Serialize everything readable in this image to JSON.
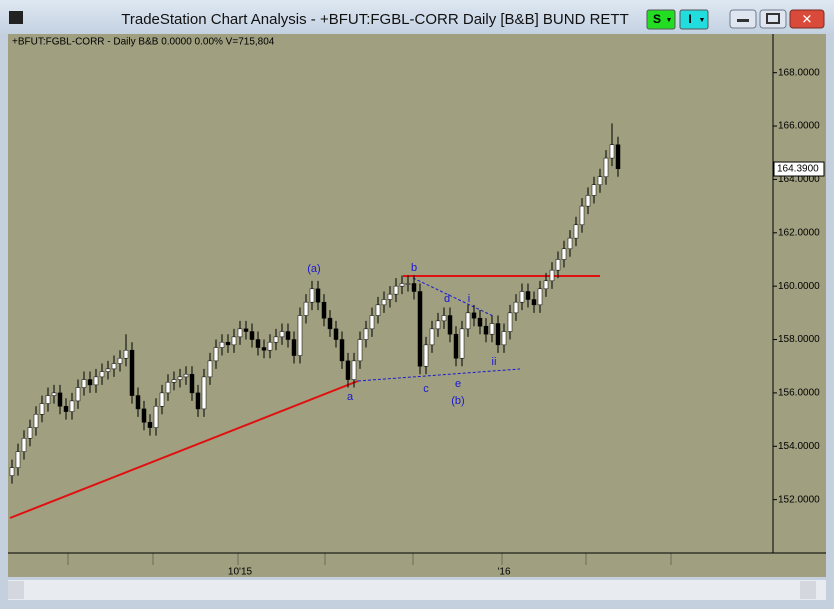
{
  "window": {
    "buttons": [
      "S",
      "I"
    ]
  },
  "chart_data": {
    "type": "candlestick",
    "title": "TradeStation Chart Analysis - +BFUT:FGBL-CORR Daily [B&B] BUND RETT",
    "subtitle": "+BFUT:FGBL-CORR - Daily  B&B  0.0000  0.00%  V=715,804",
    "categories": [
      null,
      null,
      null,
      null,
      null,
      null,
      null,
      null,
      null,
      null,
      null,
      null,
      null,
      null,
      null,
      null,
      null,
      null,
      null,
      null,
      null,
      null,
      null,
      null,
      null,
      null,
      null,
      null,
      null,
      null,
      null,
      null,
      null,
      null,
      null,
      null,
      null,
      null,
      "10'15",
      null,
      null,
      null,
      null,
      null,
      null,
      null,
      null,
      null,
      null,
      null,
      null,
      null,
      null,
      null,
      null,
      null,
      null,
      null,
      null,
      null,
      null,
      null,
      null,
      null,
      null,
      null,
      null,
      null,
      null,
      null,
      null,
      null,
      null,
      null,
      null,
      null,
      null,
      null,
      null,
      null,
      null,
      null,
      "'16",
      null,
      null,
      null,
      null,
      null,
      null,
      null,
      null,
      null,
      null,
      null,
      null,
      null,
      null,
      null,
      null,
      null,
      null,
      null
    ],
    "open": [
      152.9,
      153.2,
      153.8,
      154.3,
      154.7,
      155.2,
      155.6,
      155.9,
      156.0,
      155.5,
      155.3,
      155.7,
      156.2,
      156.5,
      156.3,
      156.6,
      156.8,
      156.9,
      157.1,
      157.3,
      157.6,
      155.9,
      155.4,
      154.9,
      154.7,
      155.5,
      156.0,
      156.4,
      156.5,
      156.6,
      156.7,
      156.0,
      155.4,
      156.6,
      157.2,
      157.7,
      157.9,
      157.8,
      158.1,
      158.4,
      158.3,
      158.0,
      157.7,
      157.6,
      157.9,
      158.1,
      158.3,
      158.0,
      157.4,
      158.9,
      159.4,
      159.9,
      159.4,
      158.8,
      158.4,
      158.0,
      157.2,
      156.5,
      157.2,
      158.0,
      158.4,
      158.9,
      159.3,
      159.5,
      159.7,
      160.0,
      160.1,
      160.1,
      159.8,
      157.0,
      157.8,
      158.4,
      158.7,
      158.9,
      158.2,
      157.3,
      158.4,
      159.0,
      158.8,
      158.5,
      158.2,
      158.6,
      157.8,
      158.3,
      159.0,
      159.4,
      159.8,
      159.5,
      159.3,
      159.9,
      160.2,
      160.6,
      161.0,
      161.4,
      161.8,
      162.3,
      163.0,
      163.4,
      163.8,
      164.1,
      164.8,
      165.3
    ],
    "high": [
      153.5,
      154.1,
      154.6,
      155.0,
      155.5,
      155.9,
      156.2,
      156.3,
      156.3,
      155.8,
      156.0,
      156.5,
      156.8,
      156.8,
      156.9,
      157.1,
      157.2,
      157.4,
      157.6,
      158.2,
      157.9,
      156.2,
      155.7,
      155.2,
      155.8,
      156.3,
      156.7,
      156.8,
      156.9,
      157.0,
      157.0,
      156.3,
      156.9,
      157.5,
      158.0,
      158.2,
      158.2,
      158.4,
      158.7,
      158.7,
      158.6,
      158.3,
      158.0,
      158.2,
      158.4,
      158.6,
      158.6,
      158.3,
      159.2,
      159.7,
      160.2,
      160.2,
      159.7,
      159.1,
      158.7,
      158.3,
      157.5,
      157.5,
      158.3,
      158.7,
      159.2,
      159.6,
      159.8,
      160.0,
      160.3,
      160.4,
      160.4,
      160.4,
      160.1,
      158.1,
      158.7,
      159.0,
      159.2,
      159.2,
      158.5,
      158.7,
      159.3,
      159.3,
      159.1,
      158.8,
      158.9,
      158.9,
      158.6,
      159.3,
      159.7,
      160.1,
      160.1,
      159.8,
      160.2,
      160.5,
      160.9,
      161.3,
      161.7,
      162.1,
      162.6,
      163.3,
      163.7,
      164.1,
      164.4,
      165.1,
      166.1,
      165.6
    ],
    "low": [
      152.6,
      152.9,
      153.5,
      154.0,
      154.4,
      154.9,
      155.3,
      155.6,
      155.2,
      155.0,
      155.0,
      155.4,
      155.9,
      156.0,
      156.0,
      156.3,
      156.5,
      156.6,
      156.8,
      157.0,
      155.6,
      155.1,
      154.6,
      154.4,
      154.4,
      155.2,
      155.7,
      156.1,
      156.2,
      156.3,
      155.7,
      155.1,
      155.1,
      156.3,
      156.9,
      157.4,
      157.5,
      157.5,
      157.8,
      158.0,
      157.7,
      157.4,
      157.3,
      157.3,
      157.6,
      157.8,
      157.7,
      157.1,
      157.1,
      158.6,
      159.1,
      159.1,
      158.5,
      158.1,
      157.7,
      156.9,
      156.2,
      156.2,
      156.9,
      157.7,
      158.1,
      158.6,
      159.0,
      159.2,
      159.4,
      159.7,
      159.8,
      159.5,
      156.7,
      156.7,
      157.5,
      158.1,
      158.4,
      157.9,
      157.0,
      157.0,
      158.1,
      158.5,
      158.2,
      157.9,
      157.9,
      157.5,
      157.5,
      158.0,
      158.7,
      159.1,
      159.2,
      159.0,
      159.0,
      159.6,
      159.9,
      160.3,
      160.7,
      161.1,
      161.5,
      162.0,
      162.7,
      163.1,
      163.5,
      163.8,
      164.5,
      164.1
    ],
    "close": [
      153.2,
      153.8,
      154.3,
      154.7,
      155.2,
      155.6,
      155.9,
      156.0,
      155.5,
      155.3,
      155.7,
      156.2,
      156.5,
      156.3,
      156.6,
      156.8,
      156.9,
      157.1,
      157.3,
      157.6,
      155.9,
      155.4,
      154.9,
      154.7,
      155.5,
      156.0,
      156.4,
      156.5,
      156.6,
      156.7,
      156.0,
      155.4,
      156.6,
      157.2,
      157.7,
      157.9,
      157.8,
      158.1,
      158.4,
      158.3,
      158.0,
      157.7,
      157.6,
      157.9,
      158.1,
      158.3,
      158.0,
      157.4,
      158.9,
      159.4,
      159.9,
      159.4,
      158.8,
      158.4,
      158.0,
      157.2,
      156.5,
      157.2,
      158.0,
      158.4,
      158.9,
      159.3,
      159.5,
      159.7,
      160.0,
      160.1,
      160.1,
      159.8,
      157.0,
      157.8,
      158.4,
      158.7,
      158.9,
      158.2,
      157.3,
      158.4,
      159.0,
      158.8,
      158.5,
      158.2,
      158.6,
      157.8,
      158.3,
      159.0,
      159.4,
      159.8,
      159.5,
      159.3,
      159.9,
      160.2,
      160.6,
      161.0,
      161.4,
      161.8,
      162.3,
      163.0,
      163.4,
      163.8,
      164.1,
      164.8,
      165.3,
      164.4
    ],
    "last_price": {
      "value": 164.39,
      "label": "164.3900"
    },
    "ylim": [
      150.0,
      169.45
    ],
    "yticks": [
      {
        "value": 152,
        "label": "152.0000"
      },
      {
        "value": 154,
        "label": "154.0000"
      },
      {
        "value": 156,
        "label": "156.0000"
      },
      {
        "value": 158,
        "label": "158.0000"
      },
      {
        "value": 160,
        "label": "160.0000"
      },
      {
        "value": 162,
        "label": "162.0000"
      },
      {
        "value": 164,
        "label": "164.0000"
      },
      {
        "value": 166,
        "label": "166.0000"
      },
      {
        "value": 168,
        "label": "168.0000"
      }
    ],
    "annotations": [
      "(a)",
      "b",
      "a",
      "c",
      "e",
      "(b)",
      "d",
      "i",
      "ii"
    ],
    "up_color": "#ffffff",
    "down_color": "#000000",
    "background": "#a09f80"
  }
}
